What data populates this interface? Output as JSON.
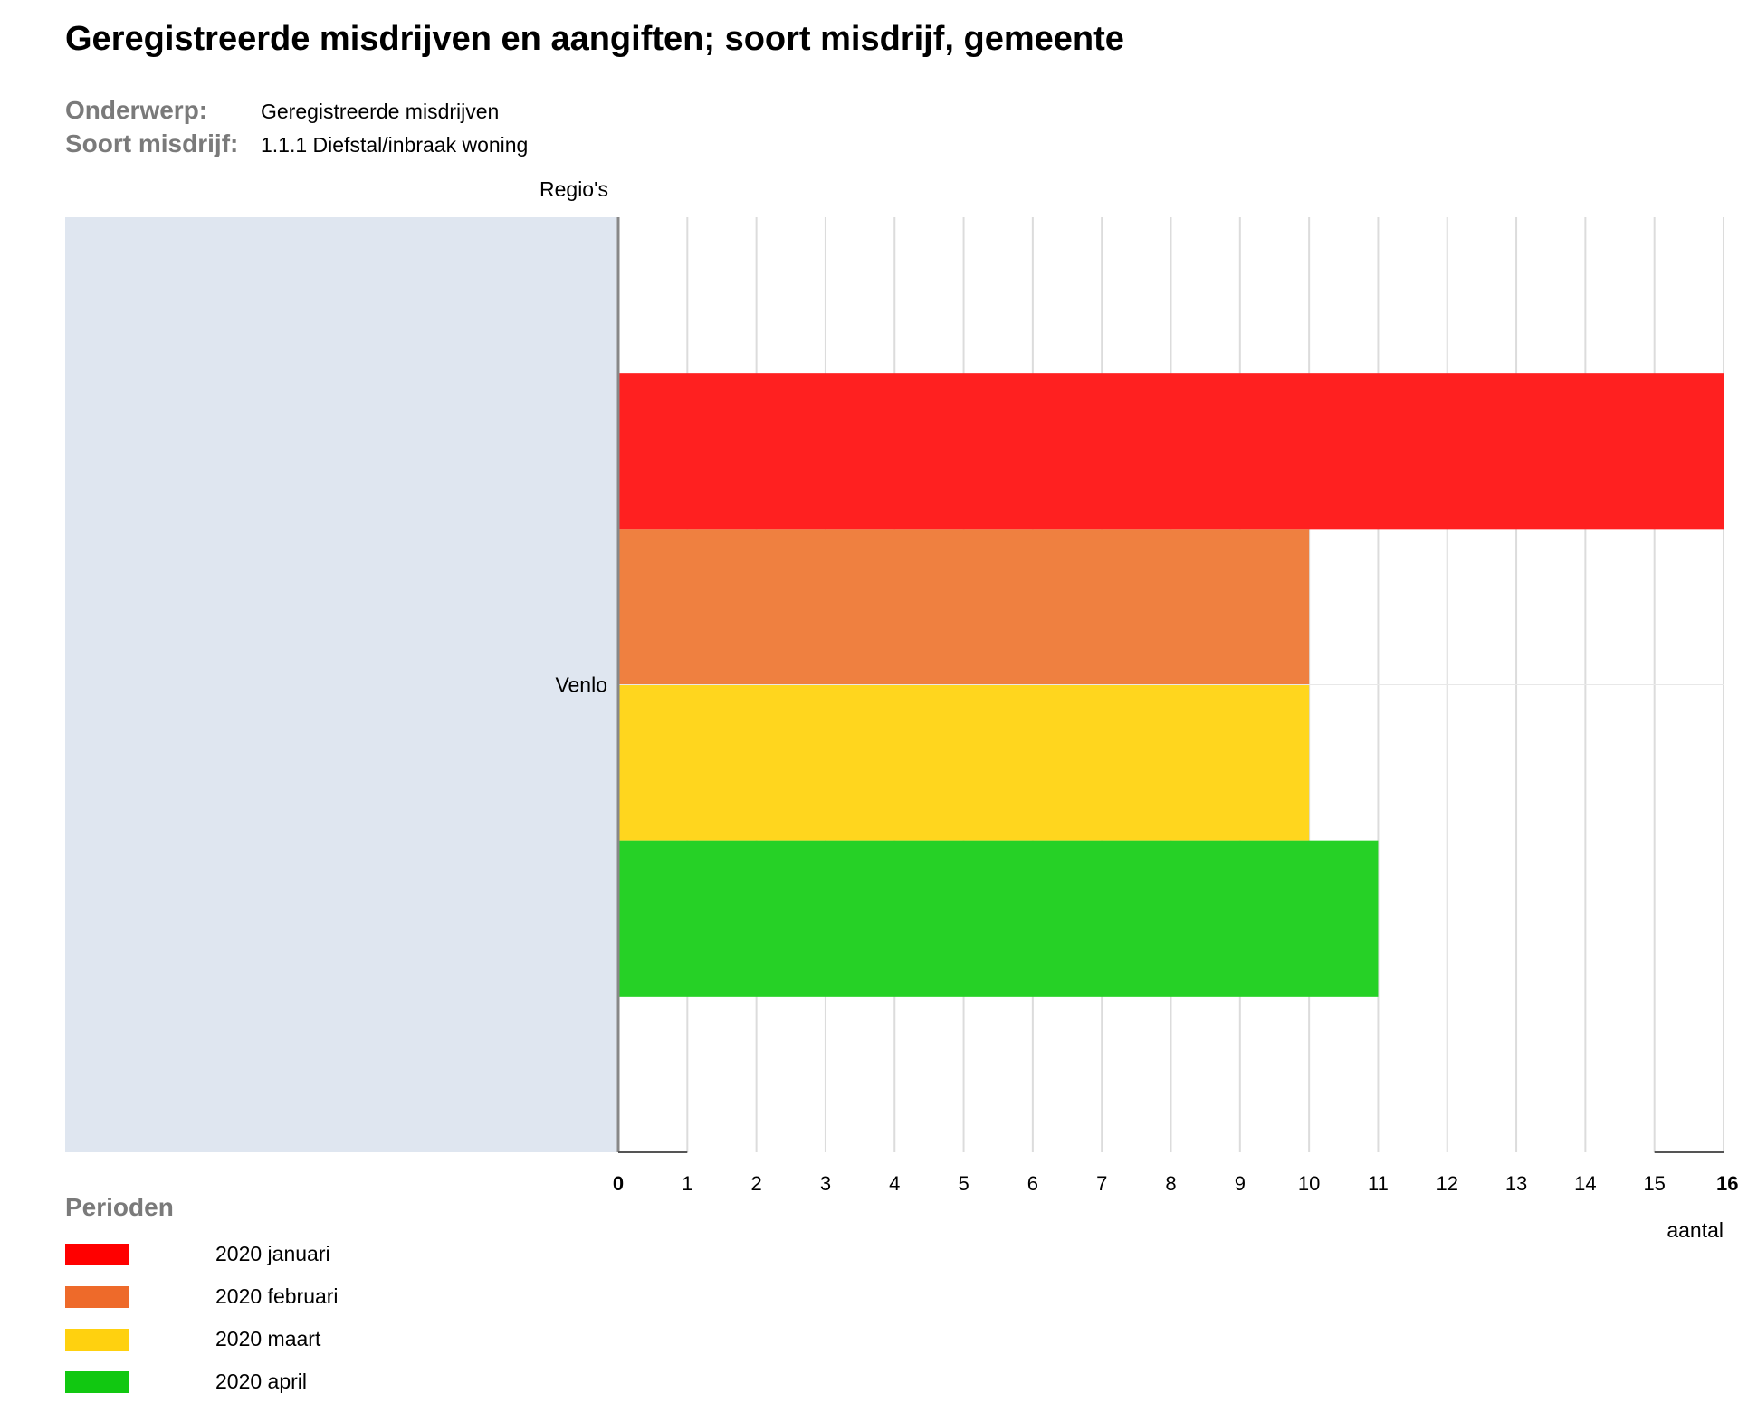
{
  "title": "Geregistreerde misdrijven en aangiften; soort misdrijf, gemeente",
  "meta": [
    {
      "key": "Onderwerp:",
      "value": "Geregistreerde misdrijven"
    },
    {
      "key": "Soort misdrijf:",
      "value": "1.1.1 Diefstal/inbraak woning"
    }
  ],
  "legend_title": "Perioden",
  "chart_data": {
    "type": "bar",
    "orientation": "horizontal",
    "title": "Geregistreerde misdrijven en aangiften; soort misdrijf, gemeente",
    "ylabel": "Regio's",
    "xlabel": "aantal",
    "categories": [
      "Venlo"
    ],
    "xlim": [
      0,
      16
    ],
    "ticks": [
      0,
      1,
      2,
      3,
      4,
      5,
      6,
      7,
      8,
      9,
      10,
      11,
      12,
      13,
      14,
      15,
      16
    ],
    "grid": true,
    "legend_position": "bottom-left",
    "series": [
      {
        "name": "2020 januari",
        "color": "#ff2020",
        "legend_color": "#ff0000",
        "values": [
          16
        ]
      },
      {
        "name": "2020 februari",
        "color": "#ef8040",
        "legend_color": "#ee6a2a",
        "values": [
          10
        ]
      },
      {
        "name": "2020 maart",
        "color": "#ffd61e",
        "legend_color": "#ffd10f",
        "values": [
          10
        ]
      },
      {
        "name": "2020 april",
        "color": "#26d126",
        "legend_color": "#11c811",
        "values": [
          11
        ]
      }
    ]
  }
}
